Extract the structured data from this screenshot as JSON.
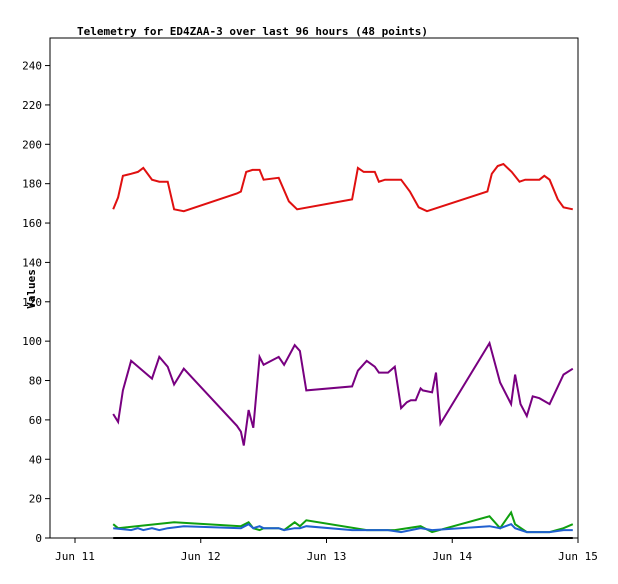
{
  "chart_data": {
    "type": "line",
    "title": "Telemetry for ED4ZAA-3 over last 96 hours (48 points)",
    "xlabel": "",
    "ylabel": "Values",
    "xlim": [
      "2024-06-11 00:00",
      "2024-06-15 00:00"
    ],
    "ylim": [
      0,
      254
    ],
    "yticks": [
      0,
      20,
      40,
      60,
      80,
      100,
      120,
      140,
      160,
      180,
      200,
      220,
      240
    ],
    "xticks": [
      {
        "at": "2024-06-11 00:00",
        "label": "Jun 11"
      },
      {
        "at": "2024-06-12 00:00",
        "label": "Jun 12"
      },
      {
        "at": "2024-06-13 00:00",
        "label": "Jun 13"
      },
      {
        "at": "2024-06-14 00:00",
        "label": "Jun 14"
      },
      {
        "at": "2024-06-15 00:00",
        "label": "Jun 15"
      }
    ],
    "grid": false,
    "legend": "none",
    "series": [
      {
        "color": "#e01010",
        "points": [
          [
            "2024-06-11 07:18",
            167
          ],
          [
            "2024-06-11 08:13",
            173
          ],
          [
            "2024-06-11 09:08",
            184
          ],
          [
            "2024-06-11 10:42",
            185
          ],
          [
            "2024-06-11 12:00",
            186
          ],
          [
            "2024-06-11 13:02",
            188
          ],
          [
            "2024-06-11 14:42",
            182
          ],
          [
            "2024-06-11 16:05",
            181
          ],
          [
            "2024-06-11 17:41",
            181
          ],
          [
            "2024-06-11 18:55",
            167
          ],
          [
            "2024-06-11 20:46",
            166
          ],
          [
            "2024-06-12 06:54",
            175
          ],
          [
            "2024-06-12 07:40",
            176
          ],
          [
            "2024-06-12 08:40",
            186
          ],
          [
            "2024-06-12 09:53",
            187
          ],
          [
            "2024-06-12 11:14",
            187
          ],
          [
            "2024-06-12 12:00",
            182
          ],
          [
            "2024-06-12 14:53",
            183
          ],
          [
            "2024-06-12 16:49",
            171
          ],
          [
            "2024-06-12 18:23",
            167
          ],
          [
            "2024-06-13 04:53",
            172
          ],
          [
            "2024-06-13 06:00",
            188
          ],
          [
            "2024-06-13 07:06",
            186
          ],
          [
            "2024-06-13 09:13",
            186
          ],
          [
            "2024-06-13 10:00",
            181
          ],
          [
            "2024-06-13 11:10",
            182
          ],
          [
            "2024-06-13 14:14",
            182
          ],
          [
            "2024-06-13 15:55",
            176
          ],
          [
            "2024-06-13 17:36",
            168
          ],
          [
            "2024-06-13 19:11",
            166
          ],
          [
            "2024-06-14 06:43",
            176
          ],
          [
            "2024-06-14 07:33",
            185
          ],
          [
            "2024-06-14 08:40",
            189
          ],
          [
            "2024-06-14 09:46",
            190
          ],
          [
            "2024-06-14 11:21",
            186
          ],
          [
            "2024-06-14 12:50",
            181
          ],
          [
            "2024-06-14 13:55",
            182
          ],
          [
            "2024-06-14 16:38",
            182
          ],
          [
            "2024-06-14 17:34",
            184
          ],
          [
            "2024-06-14 18:35",
            182
          ],
          [
            "2024-06-14 20:09",
            172
          ],
          [
            "2024-06-14 21:14",
            168
          ],
          [
            "2024-06-14 23:00",
            167
          ]
        ]
      },
      {
        "color": "#780080",
        "points": [
          [
            "2024-06-11 07:18",
            63
          ],
          [
            "2024-06-11 08:13",
            59
          ],
          [
            "2024-06-11 09:08",
            75
          ],
          [
            "2024-06-11 10:42",
            90
          ],
          [
            "2024-06-11 14:42",
            81
          ],
          [
            "2024-06-11 16:05",
            92
          ],
          [
            "2024-06-11 17:41",
            87
          ],
          [
            "2024-06-11 18:55",
            78
          ],
          [
            "2024-06-11 20:46",
            86
          ],
          [
            "2024-06-12 06:54",
            57
          ],
          [
            "2024-06-12 07:40",
            54
          ],
          [
            "2024-06-12 08:13",
            47
          ],
          [
            "2024-06-12 09:08",
            65
          ],
          [
            "2024-06-12 10:02",
            56
          ],
          [
            "2024-06-12 11:14",
            92
          ],
          [
            "2024-06-12 12:00",
            88
          ],
          [
            "2024-06-12 14:53",
            92
          ],
          [
            "2024-06-12 15:54",
            88
          ],
          [
            "2024-06-12 17:56",
            98
          ],
          [
            "2024-06-12 18:55",
            95
          ],
          [
            "2024-06-12 20:09",
            75
          ],
          [
            "2024-06-13 04:53",
            77
          ],
          [
            "2024-06-13 06:00",
            85
          ],
          [
            "2024-06-13 07:40",
            90
          ],
          [
            "2024-06-13 09:13",
            87
          ],
          [
            "2024-06-13 10:00",
            84
          ],
          [
            "2024-06-13 11:44",
            84
          ],
          [
            "2024-06-13 13:02",
            87
          ],
          [
            "2024-06-13 14:14",
            66
          ],
          [
            "2024-06-13 15:21",
            69
          ],
          [
            "2024-06-13 16:05",
            70
          ],
          [
            "2024-06-13 17:01",
            70
          ],
          [
            "2024-06-13 17:58",
            76
          ],
          [
            "2024-06-13 18:23",
            75
          ],
          [
            "2024-06-13 20:09",
            74
          ],
          [
            "2024-06-13 20:54",
            84
          ],
          [
            "2024-06-13 21:44",
            58
          ],
          [
            "2024-06-14 07:06",
            99
          ],
          [
            "2024-06-14 09:08",
            79
          ],
          [
            "2024-06-14 11:14",
            68
          ],
          [
            "2024-06-14 12:00",
            83
          ],
          [
            "2024-06-14 13:02",
            68
          ],
          [
            "2024-06-14 14:14",
            62
          ],
          [
            "2024-06-14 15:21",
            72
          ],
          [
            "2024-06-14 16:38",
            71
          ],
          [
            "2024-06-14 18:35",
            68
          ],
          [
            "2024-06-14 21:14",
            83
          ],
          [
            "2024-06-14 23:00",
            86
          ]
        ]
      },
      {
        "color": "#10a010",
        "points": [
          [
            "2024-06-11 07:18",
            7
          ],
          [
            "2024-06-11 08:13",
            5
          ],
          [
            "2024-06-11 18:55",
            8
          ],
          [
            "2024-06-12 07:40",
            6
          ],
          [
            "2024-06-12 09:08",
            8
          ],
          [
            "2024-06-12 10:02",
            5
          ],
          [
            "2024-06-12 11:14",
            4
          ],
          [
            "2024-06-12 12:00",
            5
          ],
          [
            "2024-06-12 14:53",
            5
          ],
          [
            "2024-06-12 15:54",
            4
          ],
          [
            "2024-06-12 17:56",
            8
          ],
          [
            "2024-06-12 18:55",
            6
          ],
          [
            "2024-06-12 20:09",
            9
          ],
          [
            "2024-06-13 07:40",
            4
          ],
          [
            "2024-06-13 09:13",
            4
          ],
          [
            "2024-06-13 13:02",
            4
          ],
          [
            "2024-06-13 17:58",
            6
          ],
          [
            "2024-06-13 20:09",
            3
          ],
          [
            "2024-06-14 07:06",
            11
          ],
          [
            "2024-06-14 09:08",
            5
          ],
          [
            "2024-06-14 11:14",
            13
          ],
          [
            "2024-06-14 12:00",
            7
          ],
          [
            "2024-06-14 14:14",
            3
          ],
          [
            "2024-06-14 18:35",
            3
          ],
          [
            "2024-06-14 21:14",
            5
          ],
          [
            "2024-06-14 23:00",
            7
          ]
        ]
      },
      {
        "color": "#2060d0",
        "points": [
          [
            "2024-06-11 07:18",
            5
          ],
          [
            "2024-06-11 10:42",
            4
          ],
          [
            "2024-06-11 12:00",
            5
          ],
          [
            "2024-06-11 13:02",
            4
          ],
          [
            "2024-06-11 14:42",
            5
          ],
          [
            "2024-06-11 16:05",
            4
          ],
          [
            "2024-06-11 17:41",
            5
          ],
          [
            "2024-06-11 20:46",
            6
          ],
          [
            "2024-06-12 07:40",
            5
          ],
          [
            "2024-06-12 09:08",
            7
          ],
          [
            "2024-06-12 10:02",
            5
          ],
          [
            "2024-06-12 11:14",
            6
          ],
          [
            "2024-06-12 12:00",
            5
          ],
          [
            "2024-06-12 14:53",
            5
          ],
          [
            "2024-06-12 15:54",
            4
          ],
          [
            "2024-06-12 17:56",
            5
          ],
          [
            "2024-06-12 18:55",
            5
          ],
          [
            "2024-06-12 20:09",
            6
          ],
          [
            "2024-06-13 04:53",
            4
          ],
          [
            "2024-06-13 11:44",
            4
          ],
          [
            "2024-06-13 14:14",
            3
          ],
          [
            "2024-06-13 16:05",
            4
          ],
          [
            "2024-06-13 17:58",
            5
          ],
          [
            "2024-06-13 20:09",
            4
          ],
          [
            "2024-06-14 07:06",
            6
          ],
          [
            "2024-06-14 09:08",
            5
          ],
          [
            "2024-06-14 11:14",
            7
          ],
          [
            "2024-06-14 12:00",
            5
          ],
          [
            "2024-06-14 14:14",
            3
          ],
          [
            "2024-06-14 18:35",
            3
          ],
          [
            "2024-06-14 21:14",
            4
          ],
          [
            "2024-06-14 23:00",
            4
          ]
        ]
      },
      {
        "color": "#000000",
        "points": [
          [
            "2024-06-11 07:18",
            0
          ],
          [
            "2024-06-14 23:00",
            0
          ]
        ]
      }
    ]
  }
}
